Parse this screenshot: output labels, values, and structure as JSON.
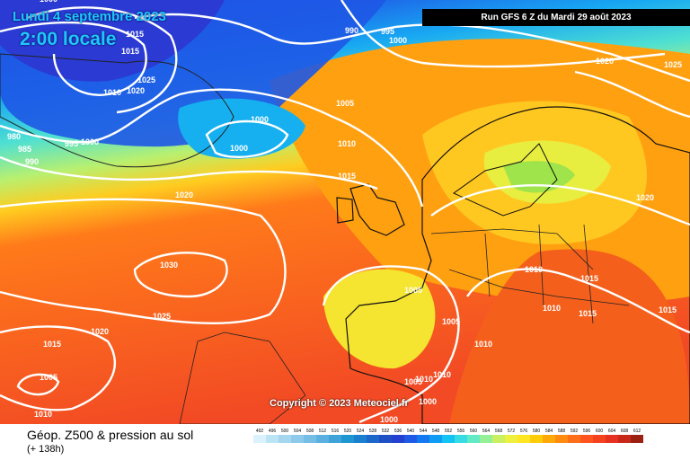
{
  "header": {
    "date_line": "Lundi 4 septembre 2023",
    "time_line": "2:00 locale",
    "run_info": "Run GFS 6 Z du Mardi 29 août 2023"
  },
  "copyright": "Copyright © 2023 Meteociel.fr",
  "footer": {
    "title": "Géop. Z500 & pression au sol",
    "subtitle": "(+ 138h)"
  },
  "isobar_labels": [
    "1015",
    "1015",
    "1025",
    "1020",
    "1010",
    "1000",
    "980",
    "985",
    "990",
    "995",
    "1000",
    "990",
    "995",
    "1000",
    "1000",
    "1000",
    "1005",
    "1010",
    "1015",
    "1020",
    "1030",
    "1025",
    "1020",
    "1015",
    "1005",
    "1010",
    "1020",
    "1025",
    "1010",
    "1015",
    "1020",
    "1005",
    "1005",
    "1010",
    "1010",
    "1015",
    "1015",
    "1010",
    "1005",
    "1010",
    "1000",
    "1000"
  ],
  "scale": {
    "values": [
      "492",
      "496",
      "500",
      "504",
      "508",
      "512",
      "516",
      "520",
      "524",
      "528",
      "532",
      "536",
      "540",
      "544",
      "548",
      "552",
      "556",
      "560",
      "564",
      "568",
      "572",
      "576",
      "580",
      "584",
      "588",
      "592",
      "596",
      "600",
      "604",
      "608",
      "612"
    ],
    "colors": [
      "#d9f2fb",
      "#bde4f5",
      "#a5d6f0",
      "#8dc9ea",
      "#74bde5",
      "#5cb0df",
      "#3da3d8",
      "#1e96d2",
      "#1a7fcf",
      "#1c67c9",
      "#1e4fc4",
      "#2340d0",
      "#1e5ae6",
      "#1479f0",
      "#0f9cf5",
      "#12c3f4",
      "#35dce4",
      "#62eac5",
      "#93f096",
      "#c8f060",
      "#eef040",
      "#ffe522",
      "#ffcc0a",
      "#ffa80a",
      "#ff8c0e",
      "#ff6e1a",
      "#ff541e",
      "#f5421e",
      "#e63020",
      "#c82818",
      "#9a2012"
    ]
  }
}
